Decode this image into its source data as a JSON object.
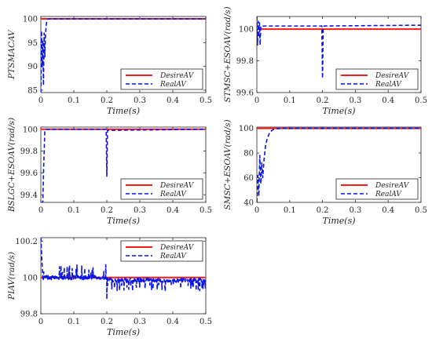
{
  "colors": {
    "desire": "#ff1a1a",
    "real": "#0a14e6",
    "axis": "#262626"
  },
  "chart_data": [
    {
      "type": "line",
      "xlabel": "Time(s)",
      "ylabel": "PTSMACAV",
      "xlim": [
        0,
        0.5
      ],
      "ylim": [
        84.5,
        100.5
      ],
      "xticks": [
        "0",
        "0.1",
        "0.2",
        "0.3",
        "0.4",
        "0.5"
      ],
      "yticks": [
        "85",
        "90",
        "95",
        "100"
      ],
      "legend_position": "bottom-right",
      "series": [
        {
          "name": "DesireAV",
          "style": "solid",
          "x": [
            0,
            0.5
          ],
          "y": [
            100,
            100
          ]
        },
        {
          "name": "RealAV",
          "style": "dashed",
          "x": [
            0,
            0.002,
            0.004,
            0.006,
            0.008,
            0.01,
            0.012,
            0.014,
            0.016,
            0.018,
            0.02,
            0.025,
            0.5
          ],
          "y": [
            84.5,
            97.5,
            90.0,
            95.5,
            86.0,
            97.0,
            92.0,
            96.5,
            98.5,
            99.5,
            99.9,
            100.0,
            100.0
          ]
        }
      ]
    },
    {
      "type": "line",
      "xlabel": "Time(s)",
      "ylabel": "STMSC+ESOAV(rad/s)",
      "xlim": [
        0,
        0.5
      ],
      "ylim": [
        99.6,
        100.08
      ],
      "xticks": [
        "0",
        "0.1",
        "0.2",
        "0.3",
        "0.4",
        "0.5"
      ],
      "yticks": [
        "99.6",
        "99.8",
        "100"
      ],
      "legend_position": "bottom-right",
      "series": [
        {
          "name": "DesireAV",
          "style": "solid",
          "x": [
            0,
            0.5
          ],
          "y": [
            100,
            100
          ]
        },
        {
          "name": "RealAV",
          "style": "dashed",
          "x": [
            0,
            0.002,
            0.004,
            0.006,
            0.008,
            0.01,
            0.012,
            0.015,
            0.198,
            0.2,
            0.202,
            0.205,
            0.5
          ],
          "y": [
            100.08,
            99.9,
            100.05,
            99.95,
            100.04,
            99.9,
            100.02,
            100.02,
            100.02,
            99.69,
            100.0,
            100.02,
            100.025
          ]
        }
      ]
    },
    {
      "type": "line",
      "xlabel": "Time(s)",
      "ylabel": "BSLGC+ESOAV(rad/s)",
      "xlim": [
        0,
        0.5
      ],
      "ylim": [
        99.33,
        100.02
      ],
      "xticks": [
        "0",
        "0.1",
        "0.2",
        "0.3",
        "0.4",
        "0.5"
      ],
      "yticks": [
        "99.4",
        "99.6",
        "99.8",
        "100"
      ],
      "legend_position": "bottom-right",
      "series": [
        {
          "name": "DesireAV",
          "style": "solid",
          "x": [
            0,
            0.5
          ],
          "y": [
            100,
            100
          ]
        },
        {
          "name": "RealAV",
          "style": "dashed",
          "x": [
            0,
            0.006,
            0.009,
            0.012,
            0.016,
            0.02,
            0.198,
            0.2,
            0.202,
            0.5
          ],
          "y": [
            99.33,
            99.33,
            99.7,
            99.98,
            100.0,
            100.0,
            100.0,
            99.57,
            99.99,
            100.0
          ]
        }
      ]
    },
    {
      "type": "line",
      "xlabel": "Time(s)",
      "ylabel": "SMSC+ESOAV(rad/s)",
      "xlim": [
        0,
        0.5
      ],
      "ylim": [
        40,
        101
      ],
      "xticks": [
        "0",
        "0.1",
        "0.2",
        "0.3",
        "0.4",
        "0.5"
      ],
      "yticks": [
        "40",
        "60",
        "80",
        "100"
      ],
      "legend_position": "bottom-right",
      "series": [
        {
          "name": "DesireAV",
          "style": "solid",
          "x": [
            0,
            0.5
          ],
          "y": [
            100,
            100
          ]
        },
        {
          "name": "RealAV",
          "style": "dashed",
          "x": [
            0,
            0.003,
            0.006,
            0.009,
            0.012,
            0.015,
            0.018,
            0.022,
            0.026,
            0.03,
            0.035,
            0.04,
            0.05,
            0.06,
            0.08,
            0.5
          ],
          "y": [
            40,
            62,
            45,
            78,
            55,
            72,
            60,
            75,
            85,
            90,
            94,
            97,
            99,
            99.7,
            100,
            100
          ]
        }
      ]
    },
    {
      "type": "line",
      "xlabel": "Time(s)",
      "ylabel": "PIAV(rad/s)",
      "xlim": [
        0,
        0.5
      ],
      "ylim": [
        99.8,
        100.22
      ],
      "xticks": [
        "0",
        "0.1",
        "0.2",
        "0.3",
        "0.4",
        "0.5"
      ],
      "yticks": [
        "99.8",
        "100",
        "100.2"
      ],
      "legend_position": "top-right",
      "series": [
        {
          "name": "DesireAV",
          "style": "solid",
          "x": [
            0,
            0.5
          ],
          "y": [
            100,
            100
          ]
        },
        {
          "name": "RealAV",
          "style": "dashed",
          "generator": "noisy",
          "start": [
            [
              0,
              100.22
            ],
            [
              0.003,
              100.1
            ],
            [
              0.006,
              100.0
            ]
          ],
          "segments": [
            {
              "from": 0.006,
              "to": 0.198,
              "base": 100.0,
              "amp": 0.012,
              "spike": 0.07,
              "spike_prob": 0.08
            },
            {
              "from": 0.198,
              "to": 0.5,
              "base": 99.985,
              "amp": 0.012,
              "spike": -0.06,
              "spike_prob": 0.1
            }
          ],
          "events": [
            [
              0.2,
              99.88
            ],
            [
              0.203,
              99.99
            ]
          ],
          "seed": 7
        }
      ]
    }
  ]
}
